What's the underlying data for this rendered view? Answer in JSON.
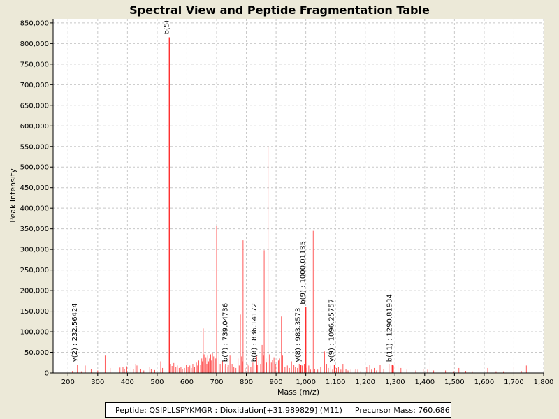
{
  "chart_data": {
    "type": "bar",
    "title": "Spectral View and Peptide Fragmentation Table",
    "xlabel": "Mass (m/z)",
    "ylabel": "Peak Intensity",
    "xlim": [
      150,
      1800
    ],
    "ylim": [
      0,
      860000
    ],
    "x_ticks": [
      "200",
      "300",
      "400",
      "500",
      "600",
      "700",
      "800",
      "900",
      "1,000",
      "1,100",
      "1,200",
      "1,300",
      "1,400",
      "1,500",
      "1,600",
      "1,700",
      "1,800"
    ],
    "y_ticks": [
      "0",
      "50,000",
      "100,000",
      "150,000",
      "200,000",
      "250,000",
      "300,000",
      "350,000",
      "400,000",
      "450,000",
      "500,000",
      "550,000",
      "600,000",
      "650,000",
      "700,000",
      "750,000",
      "800,000",
      "850,000"
    ],
    "grid": true,
    "colors": {
      "peak": "#ff5a5a",
      "annotated_peak": "#ff3030",
      "grid": "#c8c8c8",
      "plot_bg": "#ffffff",
      "page_bg": "#ece9d8"
    },
    "peaks": [
      [
        215,
        5000
      ],
      [
        232,
        6000
      ],
      [
        245,
        4000
      ],
      [
        258,
        18000
      ],
      [
        278,
        9000
      ],
      [
        300,
        6000
      ],
      [
        325,
        42000
      ],
      [
        342,
        12000
      ],
      [
        375,
        13000
      ],
      [
        385,
        15000
      ],
      [
        390,
        9000
      ],
      [
        398,
        16000
      ],
      [
        405,
        11000
      ],
      [
        412,
        14000
      ],
      [
        420,
        10000
      ],
      [
        428,
        22000
      ],
      [
        432,
        18000
      ],
      [
        445,
        9000
      ],
      [
        455,
        6000
      ],
      [
        475,
        14000
      ],
      [
        480,
        9000
      ],
      [
        492,
        7000
      ],
      [
        512,
        28000
      ],
      [
        518,
        12000
      ],
      [
        545,
        22000
      ],
      [
        550,
        17000
      ],
      [
        556,
        24000
      ],
      [
        563,
        15000
      ],
      [
        568,
        18000
      ],
      [
        574,
        12000
      ],
      [
        580,
        15000
      ],
      [
        585,
        10000
      ],
      [
        592,
        12000
      ],
      [
        598,
        20000
      ],
      [
        604,
        14000
      ],
      [
        610,
        18000
      ],
      [
        615,
        12000
      ],
      [
        620,
        22000
      ],
      [
        626,
        15000
      ],
      [
        632,
        25000
      ],
      [
        636,
        18000
      ],
      [
        640,
        30000
      ],
      [
        646,
        20000
      ],
      [
        650,
        35000
      ],
      [
        652,
        28000
      ],
      [
        655,
        108000
      ],
      [
        658,
        45000
      ],
      [
        661,
        32000
      ],
      [
        664,
        38000
      ],
      [
        667,
        22000
      ],
      [
        670,
        42000
      ],
      [
        673,
        28000
      ],
      [
        676,
        35000
      ],
      [
        680,
        45000
      ],
      [
        683,
        30000
      ],
      [
        686,
        48000
      ],
      [
        690,
        40000
      ],
      [
        694,
        25000
      ],
      [
        697,
        35000
      ],
      [
        700,
        30000
      ],
      [
        708,
        50000
      ],
      [
        712,
        22000
      ],
      [
        720,
        28000
      ],
      [
        725,
        18000
      ],
      [
        730,
        22000
      ],
      [
        738,
        15000
      ],
      [
        745,
        42000
      ],
      [
        752,
        22000
      ],
      [
        758,
        15000
      ],
      [
        765,
        12000
      ],
      [
        772,
        35000
      ],
      [
        776,
        18000
      ],
      [
        780,
        142000
      ],
      [
        784,
        40000
      ],
      [
        788,
        28000
      ],
      [
        796,
        12000
      ],
      [
        803,
        22000
      ],
      [
        808,
        18000
      ],
      [
        815,
        15000
      ],
      [
        822,
        25000
      ],
      [
        826,
        18000
      ],
      [
        835,
        40000
      ],
      [
        842,
        30000
      ],
      [
        848,
        22000
      ],
      [
        853,
        68000
      ],
      [
        858,
        42000
      ],
      [
        866,
        35000
      ],
      [
        868,
        25000
      ],
      [
        878,
        45000
      ],
      [
        884,
        25000
      ],
      [
        888,
        32000
      ],
      [
        893,
        38000
      ],
      [
        898,
        22000
      ],
      [
        903,
        18000
      ],
      [
        908,
        30000
      ],
      [
        912,
        35000
      ],
      [
        918,
        137000
      ],
      [
        922,
        42000
      ],
      [
        930,
        15000
      ],
      [
        938,
        18000
      ],
      [
        945,
        12000
      ],
      [
        952,
        28000
      ],
      [
        960,
        20000
      ],
      [
        965,
        15000
      ],
      [
        972,
        12000
      ],
      [
        978,
        22000
      ],
      [
        988,
        18000
      ],
      [
        995,
        22000
      ],
      [
        1004,
        12000
      ],
      [
        1010,
        18000
      ],
      [
        1016,
        8000
      ],
      [
        1030,
        10000
      ],
      [
        1040,
        8000
      ],
      [
        1050,
        15000
      ],
      [
        1063,
        52000
      ],
      [
        1070,
        22000
      ],
      [
        1076,
        12000
      ],
      [
        1084,
        18000
      ],
      [
        1090,
        8000
      ],
      [
        1103,
        12000
      ],
      [
        1110,
        15000
      ],
      [
        1118,
        8000
      ],
      [
        1125,
        22000
      ],
      [
        1135,
        10000
      ],
      [
        1142,
        6000
      ],
      [
        1152,
        8000
      ],
      [
        1162,
        6000
      ],
      [
        1168,
        10000
      ],
      [
        1175,
        8000
      ],
      [
        1185,
        5000
      ],
      [
        1205,
        15000
      ],
      [
        1215,
        20000
      ],
      [
        1221,
        8000
      ],
      [
        1230,
        12000
      ],
      [
        1238,
        6000
      ],
      [
        1250,
        20000
      ],
      [
        1262,
        10000
      ],
      [
        1280,
        22000
      ],
      [
        1295,
        18000
      ],
      [
        1310,
        20000
      ],
      [
        1320,
        12000
      ],
      [
        1340,
        8000
      ],
      [
        1370,
        6000
      ],
      [
        1395,
        10000
      ],
      [
        1410,
        8000
      ],
      [
        1418,
        38000
      ],
      [
        1430,
        6000
      ],
      [
        1470,
        6000
      ],
      [
        1498,
        4000
      ],
      [
        1515,
        12000
      ],
      [
        1538,
        5000
      ],
      [
        1560,
        4000
      ],
      [
        1612,
        12000
      ],
      [
        1640,
        4000
      ],
      [
        1665,
        4000
      ],
      [
        1700,
        14000
      ],
      [
        1725,
        5000
      ],
      [
        1742,
        18000
      ],
      [
        700,
        358000
      ],
      [
        789,
        322000
      ],
      [
        860,
        298000
      ],
      [
        873,
        550000
      ],
      [
        1025,
        345000
      ]
    ],
    "annotations": [
      {
        "label": "y(2) : 232.56424",
        "x": 232.56424,
        "y": 20000
      },
      {
        "label": "b(5)",
        "x": 541.0,
        "y": 815000
      },
      {
        "label": "b(7) : 739.04736",
        "x": 739.04736,
        "y": 20000
      },
      {
        "label": "b(8) : 836.14172",
        "x": 836.14172,
        "y": 20000
      },
      {
        "label": "y(8) : 983.3573",
        "x": 983.3573,
        "y": 20000
      },
      {
        "label": "b(9) : 1000.01135",
        "x": 1000.01135,
        "y": 160000
      },
      {
        "label": "y(9) : 1096.25757",
        "x": 1096.25757,
        "y": 20000
      },
      {
        "label": "b(11) : 1290.81934",
        "x": 1290.81934,
        "y": 20000
      }
    ]
  },
  "info": {
    "peptide": "Peptide: QSIPLLSPYKMGR : Dioxidation[+31.989829] (M11)",
    "precursor": "Precursor Mass: 760.686"
  }
}
